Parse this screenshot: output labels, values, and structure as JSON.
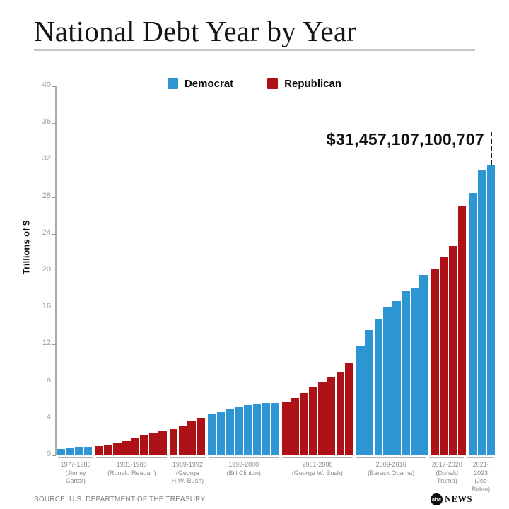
{
  "page": {
    "title": "National Debt Year by Year",
    "source": "SOURCE: U.S. DEPARTMENT OF THE TREASURY",
    "logo": {
      "circle_text": "abc",
      "wordmark": "NEWS"
    }
  },
  "chart_data": {
    "type": "bar",
    "title": "National Debt Year by Year",
    "ylabel": "Trillions of $",
    "ylim": [
      0,
      40
    ],
    "yticks": [
      0,
      4,
      8,
      12,
      16,
      20,
      24,
      28,
      32,
      36,
      40
    ],
    "grid": false,
    "legend": {
      "position": "top",
      "entries": [
        {
          "label": "Democrat",
          "color": "#2D96D2"
        },
        {
          "label": "Republican",
          "color": "#AE1116"
        }
      ]
    },
    "party_colors": {
      "Democrat": "#2D96D2",
      "Republican": "#AE1116"
    },
    "annotation": {
      "text": "$31,457,107,100,707",
      "target_year": 2023,
      "value_trillions": 31.46
    },
    "groups": [
      {
        "years_label": "1977-1980",
        "president": "(Jimmy Carter)",
        "party": "Democrat",
        "start_year": 1977,
        "values": [
          0.7,
          0.77,
          0.83,
          0.91
        ]
      },
      {
        "years_label": "1981-1988",
        "president": "(Ronald Reagan)",
        "party": "Republican",
        "start_year": 1981,
        "values": [
          1.0,
          1.14,
          1.38,
          1.57,
          1.82,
          2.13,
          2.35,
          2.6
        ]
      },
      {
        "years_label": "1989-1992",
        "president": "(George H.W. Bush)",
        "party": "Republican",
        "start_year": 1989,
        "values": [
          2.86,
          3.23,
          3.67,
          4.06
        ]
      },
      {
        "years_label": "1993-2000",
        "president": "(Bill Clinton)",
        "party": "Democrat",
        "start_year": 1993,
        "values": [
          4.41,
          4.69,
          4.97,
          5.22,
          5.41,
          5.53,
          5.66,
          5.67
        ]
      },
      {
        "years_label": "2001-2008",
        "president": "(George W. Bush)",
        "party": "Republican",
        "start_year": 2001,
        "values": [
          5.81,
          6.23,
          6.78,
          7.38,
          7.93,
          8.51,
          9.01,
          10.02
        ]
      },
      {
        "years_label": "2009-2016",
        "president": "(Barack Obama)",
        "party": "Democrat",
        "start_year": 2009,
        "values": [
          11.91,
          13.56,
          14.79,
          16.07,
          16.74,
          17.82,
          18.15,
          19.57
        ]
      },
      {
        "years_label": "2017-2020",
        "president": "(Donald Trump)",
        "party": "Republican",
        "start_year": 2017,
        "values": [
          20.24,
          21.52,
          22.72,
          26.95
        ]
      },
      {
        "years_label": "2021-2023",
        "president": "(Joe Biden)",
        "party": "Democrat",
        "start_year": 2021,
        "values": [
          28.43,
          30.93,
          31.46
        ]
      }
    ]
  }
}
